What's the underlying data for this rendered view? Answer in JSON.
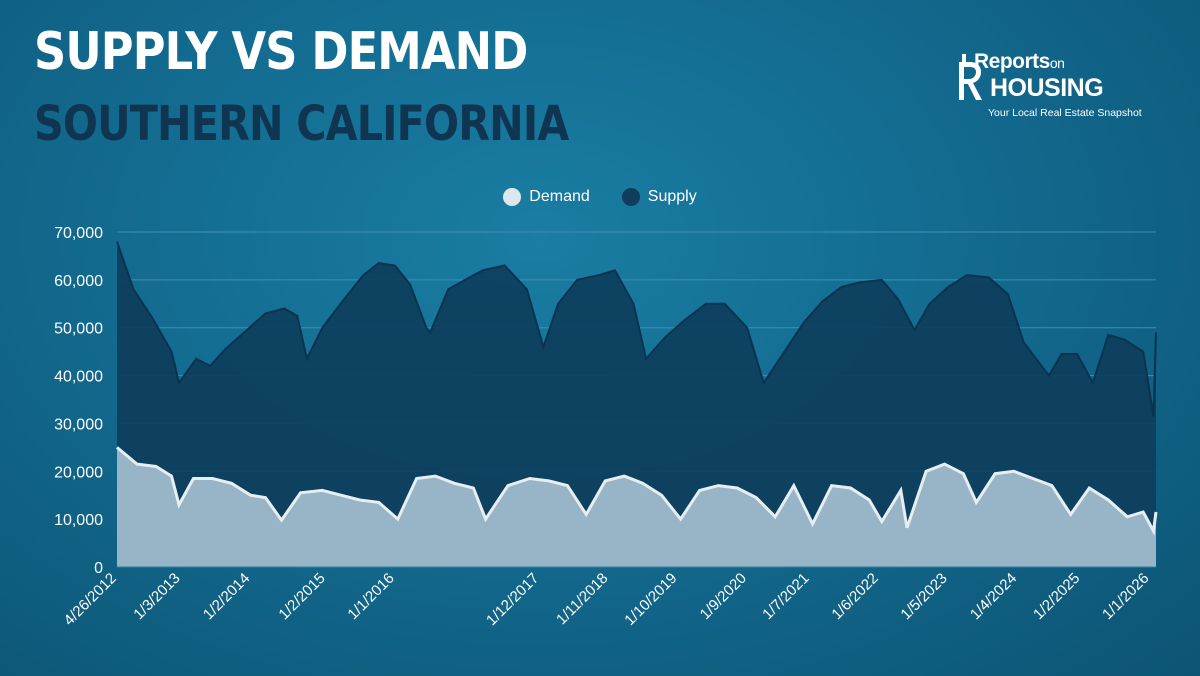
{
  "header": {
    "title": "SUPPLY VS DEMAND",
    "subtitle": "SOUTHERN CALIFORNIA"
  },
  "logo": {
    "line1": "Reports",
    "line1_small": "on",
    "line2": "HOUSING",
    "tagline": "Your Local Real Estate Snapshot"
  },
  "colors": {
    "supply": "#0e3e5c",
    "demand": "#9fbccb",
    "demand_line": "#e6eef2",
    "grid": "#3f8fb0"
  },
  "chart_data": {
    "type": "area",
    "title": "SUPPLY VS DEMAND",
    "subtitle": "SOUTHERN CALIFORNIA",
    "legend": [
      "Demand",
      "Supply"
    ],
    "legend_position": "top-center",
    "grid": true,
    "ylim": [
      0,
      70000
    ],
    "yticks": [
      "0",
      "10,000",
      "20,000",
      "30,000",
      "40,000",
      "50,000",
      "60,000",
      "70,000"
    ],
    "x_start": "2012-04-26",
    "x_end": "2026-02-01",
    "xticks": [
      {
        "date": "2012-04-26",
        "label": "4/26/2012"
      },
      {
        "date": "2013-03-01",
        "label": "1/3/2013"
      },
      {
        "date": "2014-02-01",
        "label": "1/2/2014"
      },
      {
        "date": "2015-02-01",
        "label": "1/2/2015"
      },
      {
        "date": "2016-01-01",
        "label": "1/1/2016"
      },
      {
        "date": "2017-12-01",
        "label": "1/12/2017"
      },
      {
        "date": "2018-11-01",
        "label": "1/11/2018"
      },
      {
        "date": "2019-10-01",
        "label": "1/10/2019"
      },
      {
        "date": "2020-09-01",
        "label": "1/9/2020"
      },
      {
        "date": "2021-07-01",
        "label": "1/7/2021"
      },
      {
        "date": "2022-06-01",
        "label": "1/6/2022"
      },
      {
        "date": "2023-05-01",
        "label": "1/5/2023"
      },
      {
        "date": "2024-04-01",
        "label": "1/4/2024"
      },
      {
        "date": "2025-02-01",
        "label": "1/2/2025"
      },
      {
        "date": "2026-01-01",
        "label": "1/1/2026"
      }
    ],
    "series": [
      {
        "name": "Supply",
        "points": [
          [
            "2012-04-26",
            68000
          ],
          [
            "2012-07-15",
            58000
          ],
          [
            "2012-10-15",
            52000
          ],
          [
            "2013-01-15",
            45000
          ],
          [
            "2013-02-20",
            38500
          ],
          [
            "2013-05-15",
            43500
          ],
          [
            "2013-07-20",
            42000
          ],
          [
            "2013-10-01",
            45500
          ],
          [
            "2014-01-01",
            49000
          ],
          [
            "2014-04-15",
            53000
          ],
          [
            "2014-07-15",
            54000
          ],
          [
            "2014-09-15",
            52500
          ],
          [
            "2014-11-01",
            43500
          ],
          [
            "2015-01-15",
            50000
          ],
          [
            "2015-05-01",
            56000
          ],
          [
            "2015-08-01",
            61000
          ],
          [
            "2015-10-15",
            63500
          ],
          [
            "2016-01-01",
            63000
          ],
          [
            "2016-03-15",
            59000
          ],
          [
            "2016-06-01",
            50000
          ],
          [
            "2016-06-20",
            49000
          ],
          [
            "2016-09-15",
            58000
          ],
          [
            "2016-11-15",
            59500
          ],
          [
            "2017-03-01",
            62000
          ],
          [
            "2017-06-15",
            63000
          ],
          [
            "2017-10-01",
            58000
          ],
          [
            "2017-12-20",
            46000
          ],
          [
            "2018-03-01",
            55000
          ],
          [
            "2018-06-01",
            60000
          ],
          [
            "2018-09-15",
            61000
          ],
          [
            "2018-12-01",
            62000
          ],
          [
            "2019-03-01",
            55000
          ],
          [
            "2019-05-01",
            43500
          ],
          [
            "2019-08-01",
            48000
          ],
          [
            "2019-11-01",
            51500
          ],
          [
            "2020-02-15",
            55000
          ],
          [
            "2020-05-15",
            55000
          ],
          [
            "2020-09-01",
            50000
          ],
          [
            "2020-11-20",
            38500
          ],
          [
            "2021-03-01",
            45000
          ],
          [
            "2021-06-01",
            51000
          ],
          [
            "2021-09-01",
            55500
          ],
          [
            "2021-12-01",
            58500
          ],
          [
            "2022-03-01",
            59500
          ],
          [
            "2022-06-15",
            60000
          ],
          [
            "2022-09-01",
            56000
          ],
          [
            "2022-11-20",
            49500
          ],
          [
            "2023-02-01",
            55000
          ],
          [
            "2023-05-01",
            58500
          ],
          [
            "2023-08-01",
            61000
          ],
          [
            "2023-11-15",
            60500
          ],
          [
            "2024-02-15",
            57000
          ],
          [
            "2024-05-01",
            47000
          ],
          [
            "2024-07-01",
            43500
          ],
          [
            "2024-09-01",
            40000
          ],
          [
            "2024-11-01",
            44500
          ],
          [
            "2025-01-15",
            44500
          ],
          [
            "2025-04-01",
            38500
          ],
          [
            "2025-06-15",
            48500
          ],
          [
            "2025-09-01",
            47500
          ],
          [
            "2025-12-01",
            45000
          ],
          [
            "2026-01-20",
            31500
          ],
          [
            "2026-02-01",
            49000
          ]
        ]
      },
      {
        "name": "Demand",
        "points": [
          [
            "2012-04-26",
            25000
          ],
          [
            "2012-08-01",
            21500
          ],
          [
            "2012-11-01",
            21000
          ],
          [
            "2013-01-15",
            19000
          ],
          [
            "2013-02-20",
            13000
          ],
          [
            "2013-05-01",
            18500
          ],
          [
            "2013-08-01",
            18500
          ],
          [
            "2013-11-01",
            17500
          ],
          [
            "2014-02-01",
            15000
          ],
          [
            "2014-04-15",
            14500
          ],
          [
            "2014-07-01",
            9800
          ],
          [
            "2014-10-01",
            15500
          ],
          [
            "2015-01-15",
            16000
          ],
          [
            "2015-04-15",
            15000
          ],
          [
            "2015-07-15",
            14000
          ],
          [
            "2015-10-15",
            13500
          ],
          [
            "2016-01-15",
            10000
          ],
          [
            "2016-04-15",
            18500
          ],
          [
            "2016-07-15",
            19000
          ],
          [
            "2016-10-15",
            17500
          ],
          [
            "2017-01-15",
            16500
          ],
          [
            "2017-03-15",
            10000
          ],
          [
            "2017-07-01",
            17000
          ],
          [
            "2017-10-15",
            18500
          ],
          [
            "2018-01-15",
            18000
          ],
          [
            "2018-04-15",
            17000
          ],
          [
            "2018-07-15",
            11000
          ],
          [
            "2018-10-15",
            18000
          ],
          [
            "2019-01-15",
            19000
          ],
          [
            "2019-04-15",
            17500
          ],
          [
            "2019-07-15",
            15000
          ],
          [
            "2019-10-15",
            10000
          ],
          [
            "2020-01-15",
            16000
          ],
          [
            "2020-04-15",
            17000
          ],
          [
            "2020-07-15",
            16500
          ],
          [
            "2020-10-15",
            14500
          ],
          [
            "2021-01-15",
            10500
          ],
          [
            "2021-04-15",
            17000
          ],
          [
            "2021-07-15",
            9000
          ],
          [
            "2021-10-15",
            17000
          ],
          [
            "2022-01-15",
            16500
          ],
          [
            "2022-04-15",
            14000
          ],
          [
            "2022-06-15",
            9500
          ],
          [
            "2022-09-15",
            16000
          ],
          [
            "2022-10-15",
            8200
          ],
          [
            "2023-01-15",
            20000
          ],
          [
            "2023-04-15",
            21500
          ],
          [
            "2023-07-15",
            19500
          ],
          [
            "2023-09-15",
            13500
          ],
          [
            "2023-12-15",
            19500
          ],
          [
            "2024-03-15",
            20000
          ],
          [
            "2024-06-15",
            18500
          ],
          [
            "2024-09-15",
            17000
          ],
          [
            "2024-12-15",
            11000
          ],
          [
            "2025-03-15",
            16500
          ],
          [
            "2025-06-15",
            14000
          ],
          [
            "2025-09-15",
            10500
          ],
          [
            "2025-12-01",
            11500
          ],
          [
            "2026-01-20",
            7500
          ],
          [
            "2026-02-01",
            11500
          ]
        ]
      }
    ]
  }
}
